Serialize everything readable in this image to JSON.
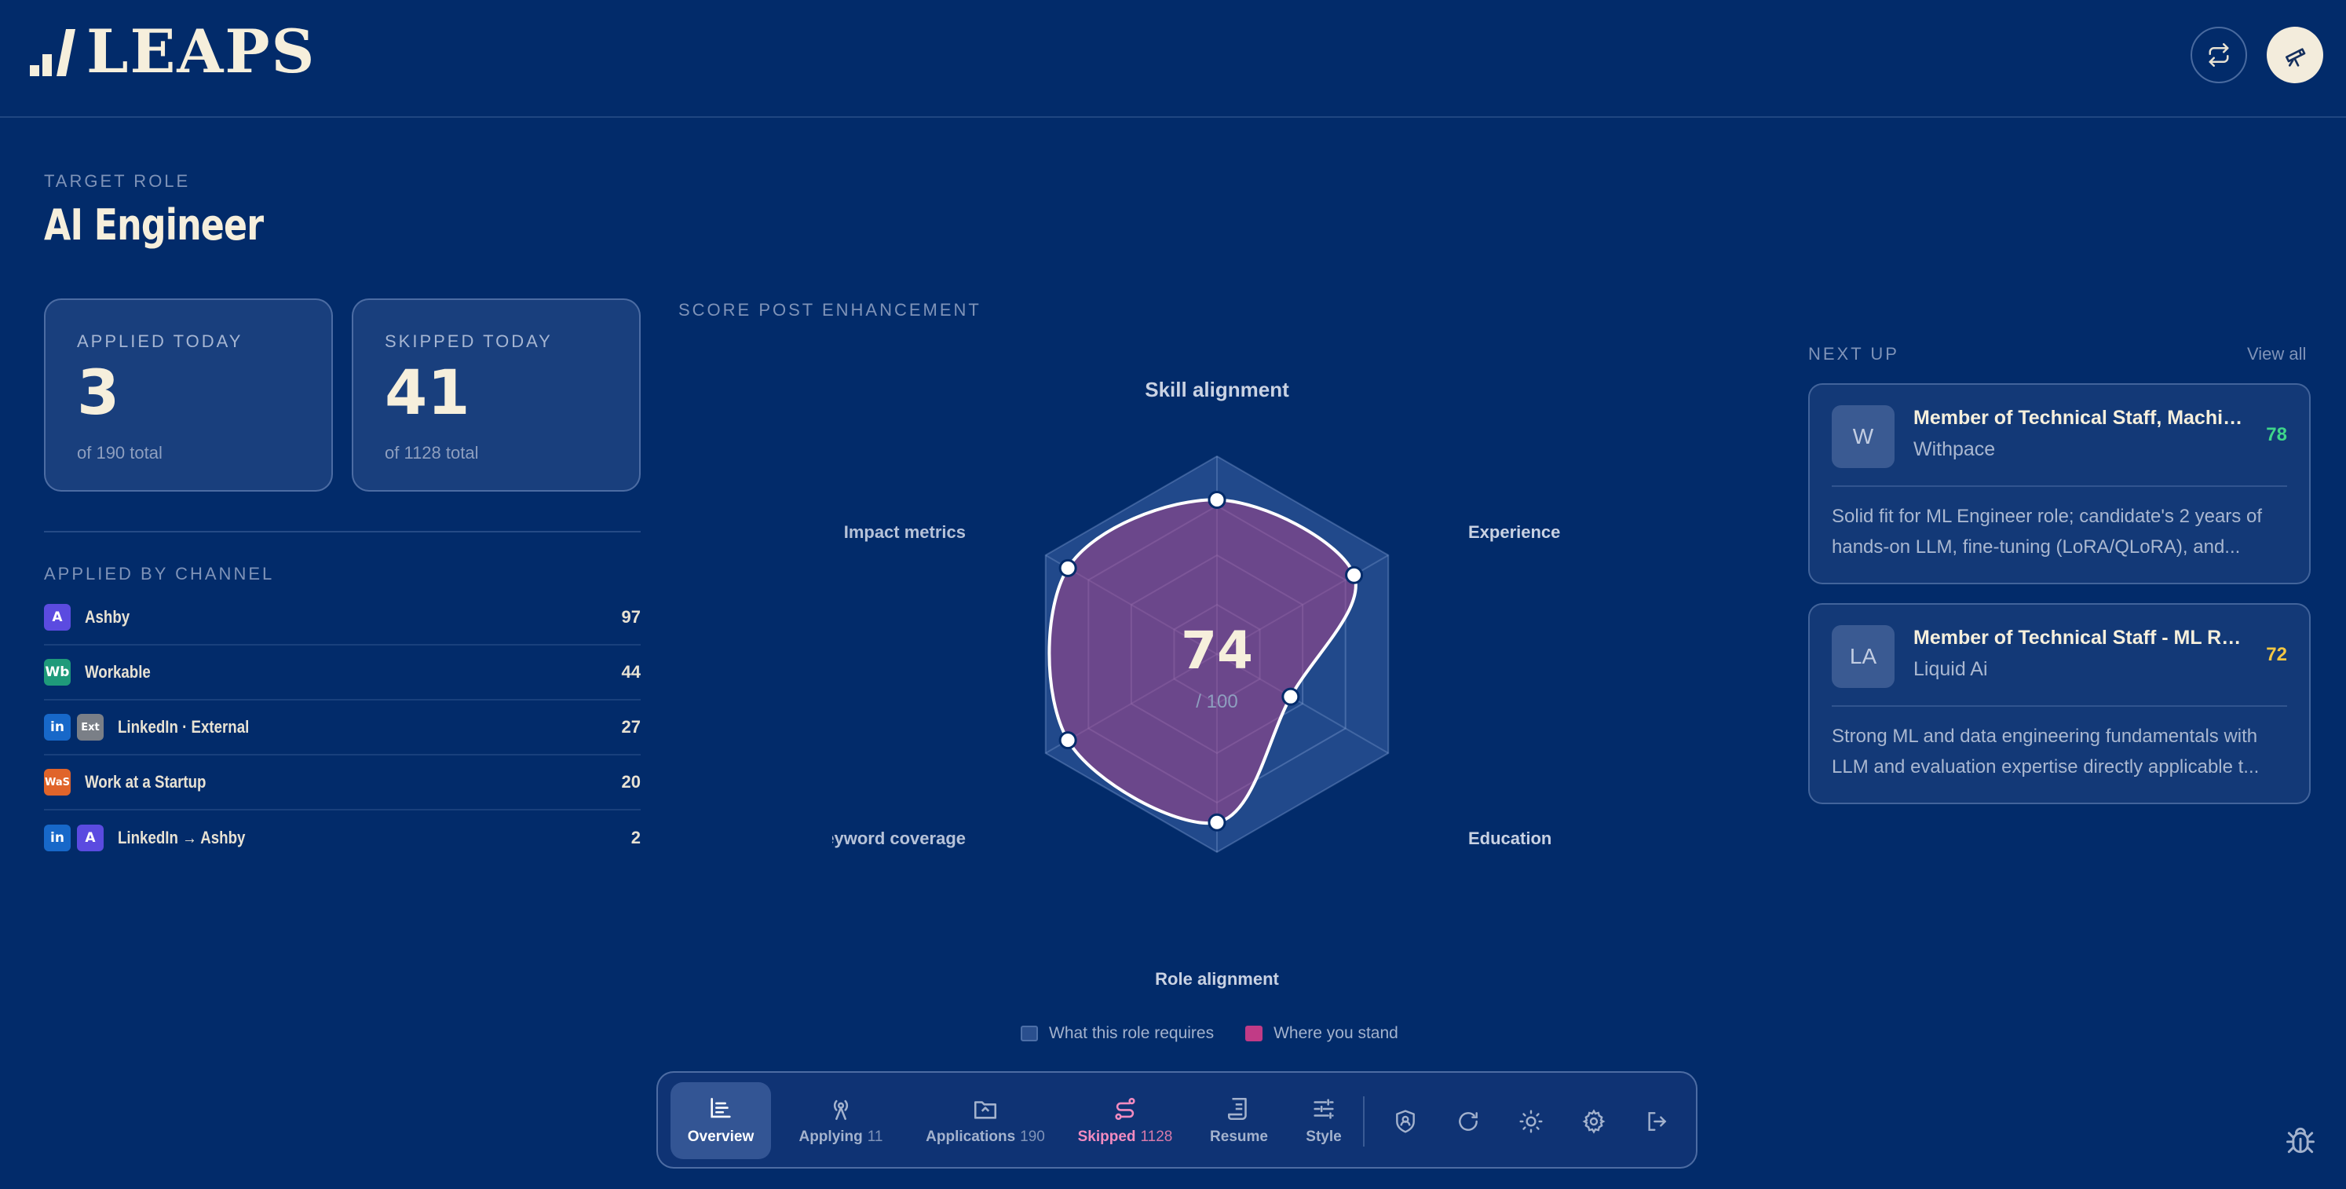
{
  "app": {
    "logo_text": "LEAPS"
  },
  "target": {
    "label": "TARGET ROLE",
    "role": "AI Engineer"
  },
  "stats": {
    "applied": {
      "label": "APPLIED TODAY",
      "value": "3",
      "foot": "of 190 total"
    },
    "skipped": {
      "label": "SKIPPED TODAY",
      "value": "41",
      "foot": "of 1128 total"
    }
  },
  "channels": {
    "label": "APPLIED BY CHANNEL",
    "items": [
      {
        "name": "Ashby",
        "count": "97",
        "badges": [
          {
            "text": "A",
            "color": "#5b4be0"
          }
        ]
      },
      {
        "name": "Workable",
        "count": "44",
        "badges": [
          {
            "text": "Wb",
            "color": "#1f9a7a"
          }
        ]
      },
      {
        "name": "LinkedIn · External",
        "count": "27",
        "badges": [
          {
            "text": "in",
            "color": "#1768c9"
          },
          {
            "text": "Ext",
            "color": "#7a7f87"
          }
        ]
      },
      {
        "name": "Work at a Startup",
        "count": "20",
        "badges": [
          {
            "text": "WaS",
            "color": "#e0642a"
          }
        ]
      },
      {
        "name": "LinkedIn → Ashby",
        "count": "2",
        "badges": [
          {
            "text": "in",
            "color": "#1768c9"
          },
          {
            "text": "A",
            "color": "#5b4be0"
          }
        ]
      }
    ]
  },
  "score": {
    "label": "SCORE POST ENHANCEMENT",
    "value": "74",
    "max": "/ 100",
    "legend_required": "What this role requires",
    "legend_stand": "Where you stand",
    "colors": {
      "required": "#2a4f8e",
      "stand": "#c13b86"
    }
  },
  "chart_data": {
    "type": "radar",
    "axes": [
      "Skill alignment",
      "Experience",
      "Education",
      "Role alignment",
      "Keyword coverage",
      "Impact metrics"
    ],
    "max": 100,
    "series": [
      {
        "name": "What this role requires",
        "values": [
          100,
          100,
          100,
          100,
          100,
          100
        ]
      },
      {
        "name": "Where you stand",
        "values": [
          78,
          80,
          43,
          85,
          87,
          87
        ]
      }
    ]
  },
  "next_up": {
    "label": "NEXT UP",
    "view_all": "View all",
    "jobs": [
      {
        "initials": "W",
        "title": "Member of Technical Staff, Machine Lear...",
        "company": "Withpace",
        "score": "78",
        "score_color": "#3fd68a",
        "desc": "Solid fit for ML Engineer role; candidate's 2 years of hands-on LLM, fine-tuning (LoRA/QLoRA), and..."
      },
      {
        "initials": "LA",
        "title": "Member of Technical Staff - ML Research ...",
        "company": "Liquid Ai",
        "score": "72",
        "score_color": "#f2c744",
        "desc": "Strong ML and data engineering fundamentals with LLM and evaluation expertise directly applicable t..."
      }
    ]
  },
  "dock": {
    "tabs": [
      {
        "label": "Overview",
        "count": "",
        "icon": "overview-icon"
      },
      {
        "label": "Applying",
        "count": "11",
        "icon": "broadcast-icon"
      },
      {
        "label": "Applications",
        "count": "190",
        "icon": "folder-icon"
      },
      {
        "label": "Skipped",
        "count": "1128",
        "icon": "route-icon"
      },
      {
        "label": "Resume",
        "count": "",
        "icon": "scroll-icon"
      },
      {
        "label": "Style",
        "count": "",
        "icon": "sliders-icon"
      }
    ]
  }
}
